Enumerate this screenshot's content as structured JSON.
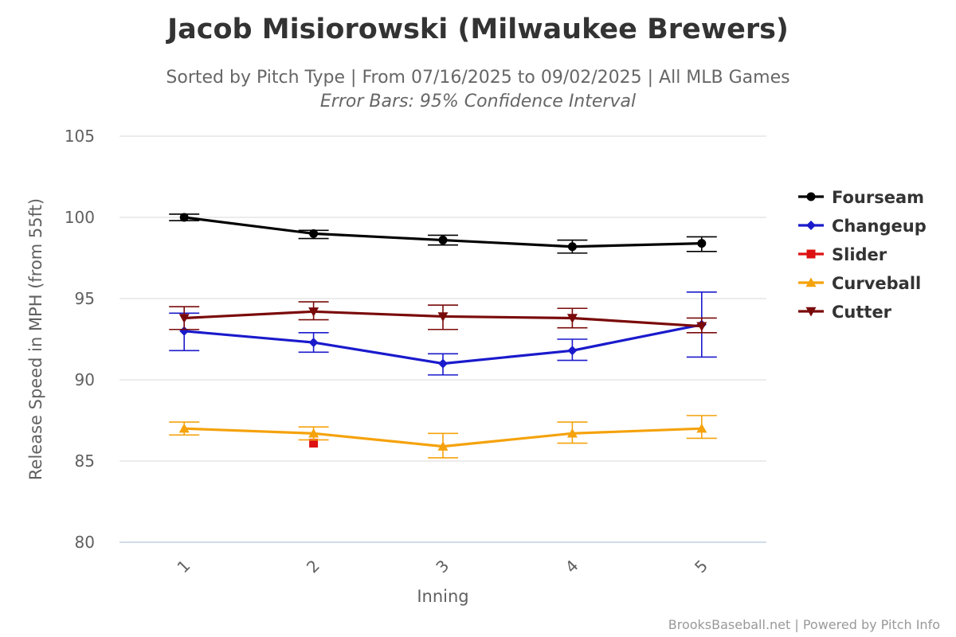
{
  "chart_data": {
    "type": "line",
    "title": "Jacob Misiorowski (Milwaukee Brewers)",
    "subtitle": "Sorted by Pitch Type | From 07/16/2025 to 09/02/2025 | All MLB Games",
    "subtitle2": "Error Bars: 95% Confidence Interval",
    "xlabel": "Inning",
    "ylabel": "Release Speed in MPH (from 55ft)",
    "categories": [
      "1",
      "2",
      "3",
      "4",
      "5"
    ],
    "ylim": [
      80,
      105
    ],
    "yticks": [
      "80",
      "85",
      "90",
      "95",
      "100",
      "105"
    ],
    "grid": true,
    "legend": "right",
    "credit": "BrooksBaseball.net | Powered by Pitch Info",
    "series": [
      {
        "name": "Fourseam",
        "color": "#000000",
        "marker": "circle",
        "values": [
          100.0,
          99.0,
          98.6,
          98.2,
          98.4
        ],
        "err_low": [
          99.8,
          98.7,
          98.3,
          97.8,
          97.9
        ],
        "err_high": [
          100.2,
          99.2,
          98.9,
          98.6,
          98.8
        ]
      },
      {
        "name": "Changeup",
        "color": "#1a1acc",
        "marker": "diamond",
        "values": [
          93.0,
          92.3,
          91.0,
          91.8,
          93.4
        ],
        "err_low": [
          91.8,
          91.7,
          90.3,
          91.2,
          91.4
        ],
        "err_high": [
          94.1,
          92.9,
          91.6,
          92.5,
          95.4
        ]
      },
      {
        "name": "Slider",
        "color": "#dd1111",
        "marker": "square",
        "values": [
          null,
          86.1,
          null,
          null,
          null
        ],
        "err_low": [
          null,
          null,
          null,
          null,
          null
        ],
        "err_high": [
          null,
          null,
          null,
          null,
          null
        ]
      },
      {
        "name": "Curveball",
        "color": "#f5a20c",
        "marker": "triangle",
        "values": [
          87.0,
          86.7,
          85.9,
          86.7,
          87.0
        ],
        "err_low": [
          86.6,
          86.3,
          85.2,
          86.1,
          86.4
        ],
        "err_high": [
          87.4,
          87.1,
          86.7,
          87.4,
          87.8
        ]
      },
      {
        "name": "Cutter",
        "color": "#7a0a0a",
        "marker": "triangle-down",
        "values": [
          93.8,
          94.2,
          93.9,
          93.8,
          93.3
        ],
        "err_low": [
          93.1,
          93.7,
          93.1,
          93.2,
          92.9
        ],
        "err_high": [
          94.5,
          94.8,
          94.6,
          94.4,
          93.8
        ]
      }
    ]
  }
}
